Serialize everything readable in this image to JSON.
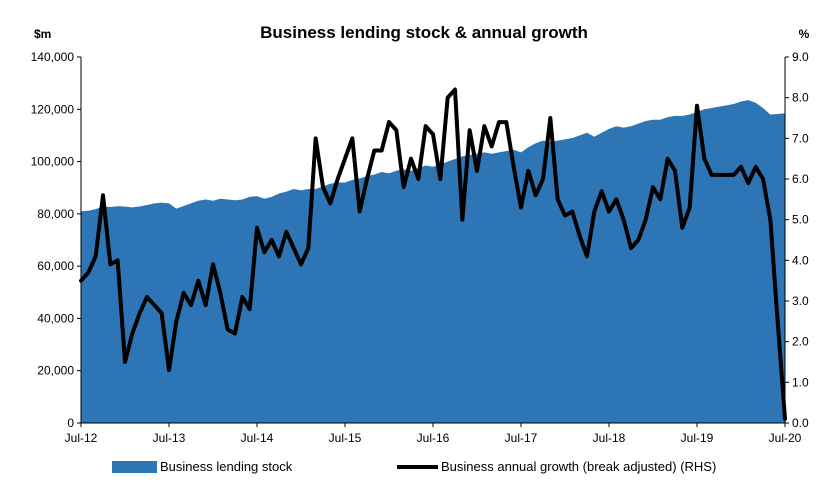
{
  "chart_data": {
    "type": "area",
    "title": "Business lending stock & annual growth",
    "left_unit": "$m",
    "right_unit": "%",
    "ylim_left": [
      0,
      140000
    ],
    "ylim_right": [
      0,
      9
    ],
    "x_tick_labels": [
      "Jul-12",
      "Jul-13",
      "Jul-14",
      "Jul-15",
      "Jul-16",
      "Jul-17",
      "Jul-18",
      "Jul-19",
      "Jul-20"
    ],
    "y_left_tick_labels": [
      "0",
      "20,000",
      "40,000",
      "60,000",
      "80,000",
      "100,000",
      "120,000",
      "140,000"
    ],
    "y_right_tick_labels": [
      "0.0",
      "1.0",
      "2.0",
      "3.0",
      "4.0",
      "5.0",
      "6.0",
      "7.0",
      "8.0",
      "9.0"
    ],
    "colors": {
      "area": "#2E75B6",
      "line": "#000000"
    },
    "series": [
      {
        "name": "Business lending stock",
        "axis": "left",
        "style": "area",
        "x": [
          "2012-07",
          "2012-08",
          "2012-09",
          "2012-10",
          "2012-11",
          "2012-12",
          "2013-01",
          "2013-02",
          "2013-03",
          "2013-04",
          "2013-05",
          "2013-06",
          "2013-07",
          "2013-08",
          "2013-09",
          "2013-10",
          "2013-11",
          "2013-12",
          "2014-01",
          "2014-02",
          "2014-03",
          "2014-04",
          "2014-05",
          "2014-06",
          "2014-07",
          "2014-08",
          "2014-09",
          "2014-10",
          "2014-11",
          "2014-12",
          "2015-01",
          "2015-02",
          "2015-03",
          "2015-04",
          "2015-05",
          "2015-06",
          "2015-07",
          "2015-08",
          "2015-09",
          "2015-10",
          "2015-11",
          "2015-12",
          "2016-01",
          "2016-02",
          "2016-03",
          "2016-04",
          "2016-05",
          "2016-06",
          "2016-07",
          "2016-08",
          "2016-09",
          "2016-10",
          "2016-11",
          "2016-12",
          "2017-01",
          "2017-02",
          "2017-03",
          "2017-04",
          "2017-05",
          "2017-06",
          "2017-07",
          "2017-08",
          "2017-09",
          "2017-10",
          "2017-11",
          "2017-12",
          "2018-01",
          "2018-02",
          "2018-03",
          "2018-04",
          "2018-05",
          "2018-06",
          "2018-07",
          "2018-08",
          "2018-09",
          "2018-10",
          "2018-11",
          "2018-12",
          "2019-01",
          "2019-02",
          "2019-03",
          "2019-04",
          "2019-05",
          "2019-06",
          "2019-07",
          "2019-08",
          "2019-09",
          "2019-10",
          "2019-11",
          "2019-12",
          "2020-01",
          "2020-02",
          "2020-03",
          "2020-04",
          "2020-05",
          "2020-06",
          "2020-07"
        ],
        "values": [
          81000,
          81200,
          81800,
          82800,
          82600,
          82900,
          82800,
          82500,
          82800,
          83400,
          84000,
          84300,
          84000,
          82000,
          83000,
          84000,
          85000,
          85500,
          85000,
          85800,
          85500,
          85200,
          85500,
          86500,
          86800,
          85800,
          86500,
          87800,
          88500,
          89500,
          89000,
          89500,
          89500,
          90500,
          91500,
          92000,
          92000,
          93000,
          93500,
          94500,
          95000,
          96000,
          95500,
          96500,
          97000,
          96500,
          97500,
          98500,
          98000,
          99000,
          100000,
          101000,
          102000,
          102500,
          103000,
          103500,
          103000,
          103500,
          104000,
          104500,
          103500,
          105500,
          107000,
          108000,
          107500,
          108000,
          108500,
          109000,
          110000,
          111000,
          109500,
          111000,
          112500,
          113500,
          113000,
          113500,
          114500,
          115500,
          116000,
          116000,
          117000,
          117500,
          117500,
          118000,
          119000,
          120000,
          120500,
          121000,
          121500,
          122000,
          123000,
          123500,
          122500,
          120500,
          118000,
          118200,
          118500
        ]
      },
      {
        "name": "Business annual growth (break adjusted) (RHS)",
        "axis": "right",
        "style": "line",
        "x": [
          "2012-07",
          "2012-08",
          "2012-09",
          "2012-10",
          "2012-11",
          "2012-12",
          "2013-01",
          "2013-02",
          "2013-03",
          "2013-04",
          "2013-05",
          "2013-06",
          "2013-07",
          "2013-08",
          "2013-09",
          "2013-10",
          "2013-11",
          "2013-12",
          "2014-01",
          "2014-02",
          "2014-03",
          "2014-04",
          "2014-05",
          "2014-06",
          "2014-07",
          "2014-08",
          "2014-09",
          "2014-10",
          "2014-11",
          "2014-12",
          "2015-01",
          "2015-02",
          "2015-03",
          "2015-04",
          "2015-05",
          "2015-06",
          "2015-07",
          "2015-08",
          "2015-09",
          "2015-10",
          "2015-11",
          "2015-12",
          "2016-01",
          "2016-02",
          "2016-03",
          "2016-04",
          "2016-05",
          "2016-06",
          "2016-07",
          "2016-08",
          "2016-09",
          "2016-10",
          "2016-11",
          "2016-12",
          "2017-01",
          "2017-02",
          "2017-03",
          "2017-04",
          "2017-05",
          "2017-06",
          "2017-07",
          "2017-08",
          "2017-09",
          "2017-10",
          "2017-11",
          "2017-12",
          "2018-01",
          "2018-02",
          "2018-03",
          "2018-04",
          "2018-05",
          "2018-06",
          "2018-07",
          "2018-08",
          "2018-09",
          "2018-10",
          "2018-11",
          "2018-12",
          "2019-01",
          "2019-02",
          "2019-03",
          "2019-04",
          "2019-05",
          "2019-06",
          "2019-07",
          "2019-08",
          "2019-09",
          "2019-10",
          "2019-11",
          "2019-12",
          "2020-01",
          "2020-02",
          "2020-03",
          "2020-04",
          "2020-05",
          "2020-06",
          "2020-07"
        ],
        "values": [
          3.5,
          3.7,
          4.1,
          5.6,
          3.9,
          4.0,
          1.5,
          2.2,
          2.7,
          3.1,
          2.9,
          2.7,
          1.3,
          2.5,
          3.2,
          2.9,
          3.5,
          2.9,
          3.9,
          3.2,
          2.3,
          2.2,
          3.1,
          2.8,
          4.8,
          4.2,
          4.5,
          4.1,
          4.7,
          4.3,
          3.9,
          4.3,
          7.0,
          5.8,
          5.4,
          6.0,
          6.5,
          7.0,
          5.2,
          6.0,
          6.7,
          6.7,
          7.4,
          7.2,
          5.8,
          6.5,
          6.0,
          7.3,
          7.1,
          6.0,
          8.0,
          8.2,
          5.0,
          7.2,
          6.2,
          7.3,
          6.8,
          7.4,
          7.4,
          6.3,
          5.3,
          6.2,
          5.6,
          6.0,
          7.5,
          5.5,
          5.1,
          5.2,
          4.6,
          4.1,
          5.2,
          5.7,
          5.2,
          5.5,
          5.0,
          4.3,
          4.5,
          5.0,
          5.8,
          5.5,
          6.5,
          6.2,
          4.8,
          5.3,
          7.8,
          6.5,
          6.1,
          6.1,
          6.1,
          6.1,
          6.3,
          5.9,
          6.3,
          6.0,
          5.0,
          2.5,
          0.1
        ]
      }
    ],
    "legend": [
      "Business lending stock",
      "Business annual growth (break adjusted) (RHS)"
    ],
    "legend_position": "bottom",
    "grid": false
  }
}
